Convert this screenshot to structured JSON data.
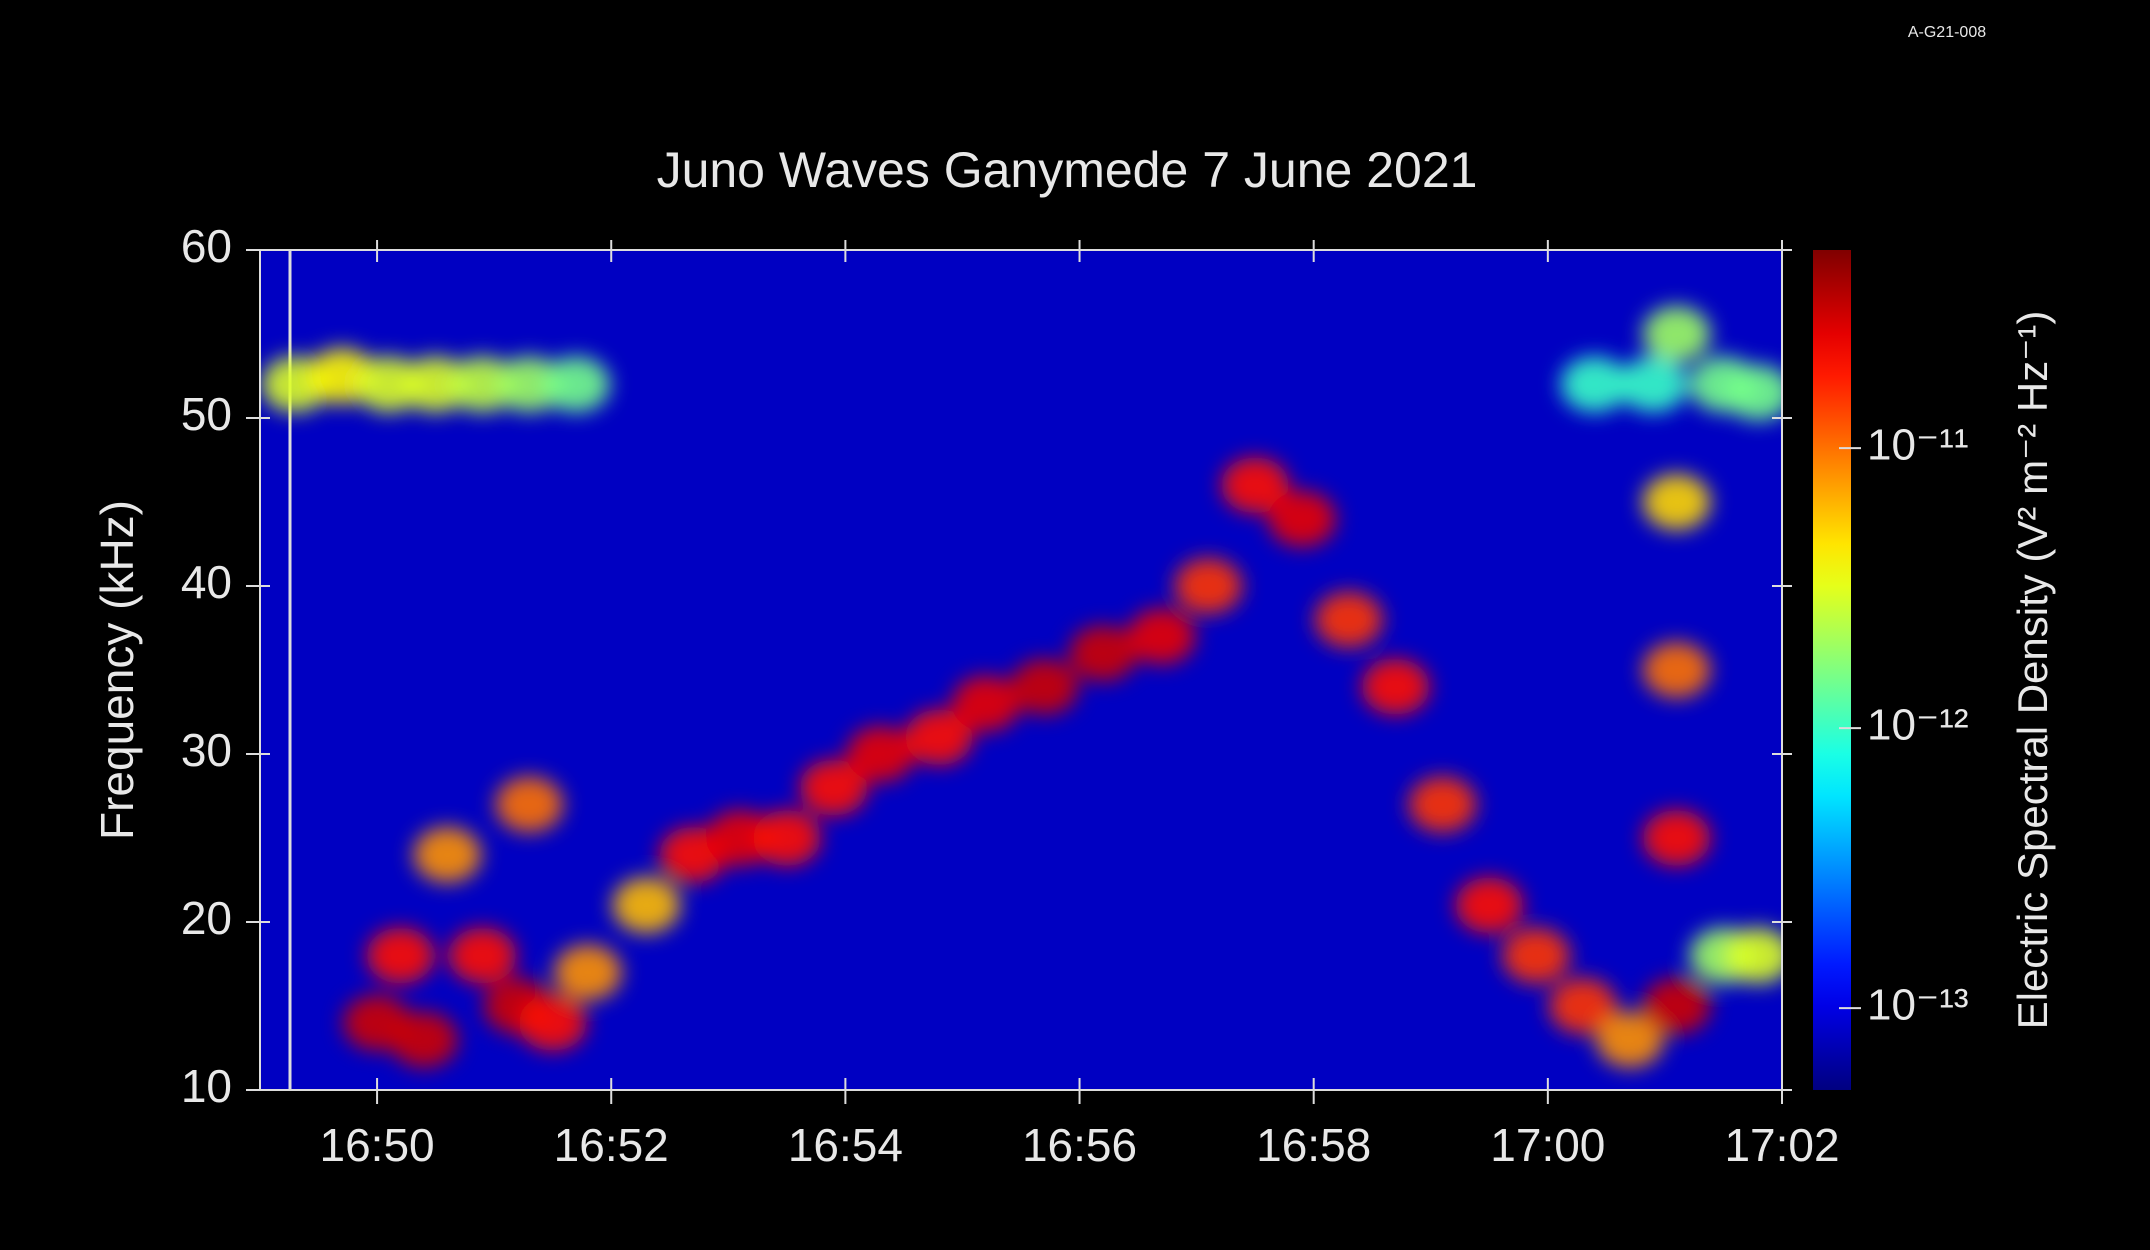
{
  "corner_code": "A-G21-008",
  "chart_data": {
    "type": "spectrogram",
    "title": "Juno Waves  Ganymede  7 June 2021",
    "y_label": "Frequency (kHz)",
    "colorbar_label": "Electric Spectral Density (V² m⁻² Hz⁻¹)",
    "xlim": [
      1009,
      1022
    ],
    "xticks": [
      {
        "value": 1010,
        "label": "16:50"
      },
      {
        "value": 1012,
        "label": "16:52"
      },
      {
        "value": 1014,
        "label": "16:54"
      },
      {
        "value": 1016,
        "label": "16:56"
      },
      {
        "value": 1018,
        "label": "16:58"
      },
      {
        "value": 1020,
        "label": "17:00"
      },
      {
        "value": 1022,
        "label": "17:02"
      }
    ],
    "ylim": [
      10,
      60
    ],
    "yticks": [
      10,
      20,
      30,
      40,
      50,
      60
    ],
    "clim": [
      5.1e-14,
      5.1e-11
    ],
    "color_scale": "log",
    "colormap": "jet",
    "cticks": [
      {
        "value": 1e-11,
        "label": "10⁻¹¹"
      },
      {
        "value": 1e-12,
        "label": "10⁻¹²"
      },
      {
        "value": 1e-13,
        "label": "10⁻¹³"
      }
    ],
    "background_value": 8e-14,
    "points": {
      "x": [
        1009.3,
        1009.7,
        1010.1,
        1010.5,
        1010.9,
        1011.3,
        1011.7,
        1010,
        1010.2,
        1010.4,
        1010.6,
        1010.9,
        1011.2,
        1011.3,
        1011.5,
        1011.8,
        1012.3,
        1012.7,
        1013.1,
        1013.5,
        1013.9,
        1014.3,
        1014.8,
        1015.2,
        1015.7,
        1016.2,
        1016.7,
        1017.1,
        1017.5,
        1017.9,
        1018.3,
        1018.7,
        1019.1,
        1019.5,
        1019.9,
        1020.3,
        1020.7,
        1021.1,
        1021.1,
        1021.1,
        1021.1,
        1021.1,
        1020.4,
        1020.9,
        1021.5,
        1021.8,
        1021.5,
        1021.8
      ],
      "y": [
        52,
        52.5,
        52,
        52,
        52,
        52,
        52,
        14,
        18,
        13,
        24,
        18,
        15,
        27,
        14,
        17,
        21,
        24,
        25,
        25,
        28,
        30,
        31,
        33,
        34,
        36,
        37,
        40,
        46,
        44,
        38,
        34,
        27,
        21,
        18,
        15,
        13,
        55,
        45,
        35,
        25,
        15,
        52,
        52,
        52,
        51.5,
        18,
        18
      ],
      "values": [
        3e-12,
        4e-12,
        3e-12,
        3e-12,
        2.5e-12,
        2e-12,
        1.5e-12,
        3e-11,
        2e-11,
        3e-11,
        8e-12,
        2e-11,
        3e-11,
        1e-11,
        2e-11,
        8e-12,
        6e-12,
        2e-11,
        2.5e-11,
        2e-11,
        2e-11,
        2.5e-11,
        2e-11,
        2.5e-11,
        3e-11,
        3e-11,
        2.5e-11,
        1.5e-11,
        2e-11,
        2.5e-11,
        1.5e-11,
        2e-11,
        1.5e-11,
        2e-11,
        1.5e-11,
        1.5e-11,
        8e-12,
        2e-12,
        5e-12,
        1e-11,
        2e-11,
        3e-11,
        1e-12,
        1e-12,
        1.5e-12,
        1.5e-12,
        2e-12,
        3e-12
      ]
    }
  }
}
